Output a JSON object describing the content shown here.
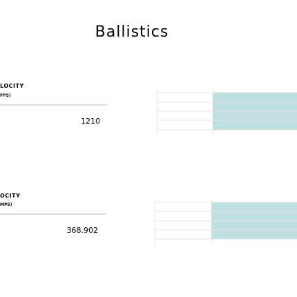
{
  "header": {
    "title": "Ballistics"
  },
  "rows": [
    {
      "label": "LOCITY",
      "unit": "FPS)",
      "value": 1210
    },
    {
      "label": "OCITY",
      "unit": "MPS)",
      "value": 368.902
    }
  ]
}
